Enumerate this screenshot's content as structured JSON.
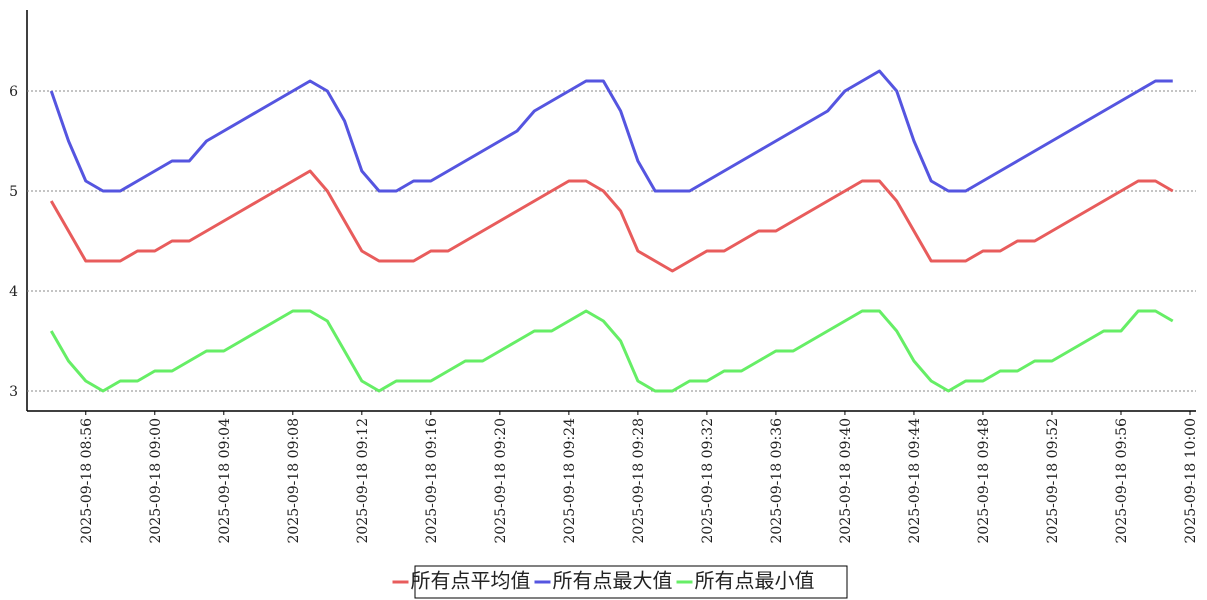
{
  "chart_data": {
    "type": "line",
    "x": [
      "2025-09-18 08:54",
      "2025-09-18 08:55",
      "2025-09-18 08:56",
      "2025-09-18 08:57",
      "2025-09-18 08:58",
      "2025-09-18 08:59",
      "2025-09-18 09:00",
      "2025-09-18 09:01",
      "2025-09-18 09:02",
      "2025-09-18 09:03",
      "2025-09-18 09:04",
      "2025-09-18 09:05",
      "2025-09-18 09:06",
      "2025-09-18 09:07",
      "2025-09-18 09:08",
      "2025-09-18 09:09",
      "2025-09-18 09:10",
      "2025-09-18 09:11",
      "2025-09-18 09:12",
      "2025-09-18 09:13",
      "2025-09-18 09:14",
      "2025-09-18 09:15",
      "2025-09-18 09:16",
      "2025-09-18 09:17",
      "2025-09-18 09:18",
      "2025-09-18 09:19",
      "2025-09-18 09:20",
      "2025-09-18 09:21",
      "2025-09-18 09:22",
      "2025-09-18 09:23",
      "2025-09-18 09:24",
      "2025-09-18 09:25",
      "2025-09-18 09:26",
      "2025-09-18 09:27",
      "2025-09-18 09:28",
      "2025-09-18 09:29",
      "2025-09-18 09:30",
      "2025-09-18 09:31",
      "2025-09-18 09:32",
      "2025-09-18 09:33",
      "2025-09-18 09:34",
      "2025-09-18 09:35",
      "2025-09-18 09:36",
      "2025-09-18 09:37",
      "2025-09-18 09:38",
      "2025-09-18 09:39",
      "2025-09-18 09:40",
      "2025-09-18 09:41",
      "2025-09-18 09:42",
      "2025-09-18 09:43",
      "2025-09-18 09:44",
      "2025-09-18 09:45",
      "2025-09-18 09:46",
      "2025-09-18 09:47",
      "2025-09-18 09:48",
      "2025-09-18 09:49",
      "2025-09-18 09:50",
      "2025-09-18 09:51",
      "2025-09-18 09:52",
      "2025-09-18 09:53",
      "2025-09-18 09:54",
      "2025-09-18 09:55",
      "2025-09-18 09:56",
      "2025-09-18 09:57",
      "2025-09-18 09:58",
      "2025-09-18 09:59"
    ],
    "series": [
      {
        "name": "所有点平均值",
        "color": "#e85c5c",
        "values": [
          4.9,
          4.6,
          4.3,
          4.3,
          4.3,
          4.4,
          4.4,
          4.5,
          4.5,
          4.6,
          4.7,
          4.8,
          4.9,
          5.0,
          5.1,
          5.2,
          5.0,
          4.7,
          4.4,
          4.3,
          4.3,
          4.3,
          4.4,
          4.4,
          4.5,
          4.6,
          4.7,
          4.8,
          4.9,
          5.0,
          5.1,
          5.1,
          5.0,
          4.8,
          4.4,
          4.3,
          4.2,
          4.3,
          4.4,
          4.4,
          4.5,
          4.6,
          4.6,
          4.7,
          4.8,
          4.9,
          5.0,
          5.1,
          5.1,
          4.9,
          4.6,
          4.3,
          4.3,
          4.3,
          4.4,
          4.4,
          4.5,
          4.5,
          4.6,
          4.7,
          4.8,
          4.9,
          5.0,
          5.1,
          5.1,
          5.0
        ]
      },
      {
        "name": "所有点最大值",
        "color": "#5555e0",
        "values": [
          6.0,
          5.5,
          5.1,
          5.0,
          5.0,
          5.1,
          5.2,
          5.3,
          5.3,
          5.5,
          5.6,
          5.7,
          5.8,
          5.9,
          6.0,
          6.1,
          6.0,
          5.7,
          5.2,
          5.0,
          5.0,
          5.1,
          5.1,
          5.2,
          5.3,
          5.4,
          5.5,
          5.6,
          5.8,
          5.9,
          6.0,
          6.1,
          6.1,
          5.8,
          5.3,
          5.0,
          5.0,
          5.0,
          5.1,
          5.2,
          5.3,
          5.4,
          5.5,
          5.6,
          5.7,
          5.8,
          6.0,
          6.1,
          6.2,
          6.0,
          5.5,
          5.1,
          5.0,
          5.0,
          5.1,
          5.2,
          5.3,
          5.4,
          5.5,
          5.6,
          5.7,
          5.8,
          5.9,
          6.0,
          6.1,
          6.1
        ]
      },
      {
        "name": "所有点最小值",
        "color": "#66ee66",
        "values": [
          3.6,
          3.3,
          3.1,
          3.0,
          3.1,
          3.1,
          3.2,
          3.2,
          3.3,
          3.4,
          3.4,
          3.5,
          3.6,
          3.7,
          3.8,
          3.8,
          3.7,
          3.4,
          3.1,
          3.0,
          3.1,
          3.1,
          3.1,
          3.2,
          3.3,
          3.3,
          3.4,
          3.5,
          3.6,
          3.6,
          3.7,
          3.8,
          3.7,
          3.5,
          3.1,
          3.0,
          3.0,
          3.1,
          3.1,
          3.2,
          3.2,
          3.3,
          3.4,
          3.4,
          3.5,
          3.6,
          3.7,
          3.8,
          3.8,
          3.6,
          3.3,
          3.1,
          3.0,
          3.1,
          3.1,
          3.2,
          3.2,
          3.3,
          3.3,
          3.4,
          3.5,
          3.6,
          3.6,
          3.8,
          3.8,
          3.7
        ]
      }
    ],
    "xlim": [
      "2025-09-18 08:53",
      "2025-09-18 10:00"
    ],
    "xticks": [
      "2025-09-18 08:56",
      "2025-09-18 09:00",
      "2025-09-18 09:04",
      "2025-09-18 09:08",
      "2025-09-18 09:12",
      "2025-09-18 09:16",
      "2025-09-18 09:20",
      "2025-09-18 09:24",
      "2025-09-18 09:28",
      "2025-09-18 09:32",
      "2025-09-18 09:36",
      "2025-09-18 09:40",
      "2025-09-18 09:44",
      "2025-09-18 09:48",
      "2025-09-18 09:52",
      "2025-09-18 09:56",
      "2025-09-18 10:00"
    ],
    "ylim": [
      2.8,
      6.8
    ],
    "yticks": [
      3,
      4,
      5,
      6
    ],
    "grid": true,
    "legend": "bottom"
  }
}
